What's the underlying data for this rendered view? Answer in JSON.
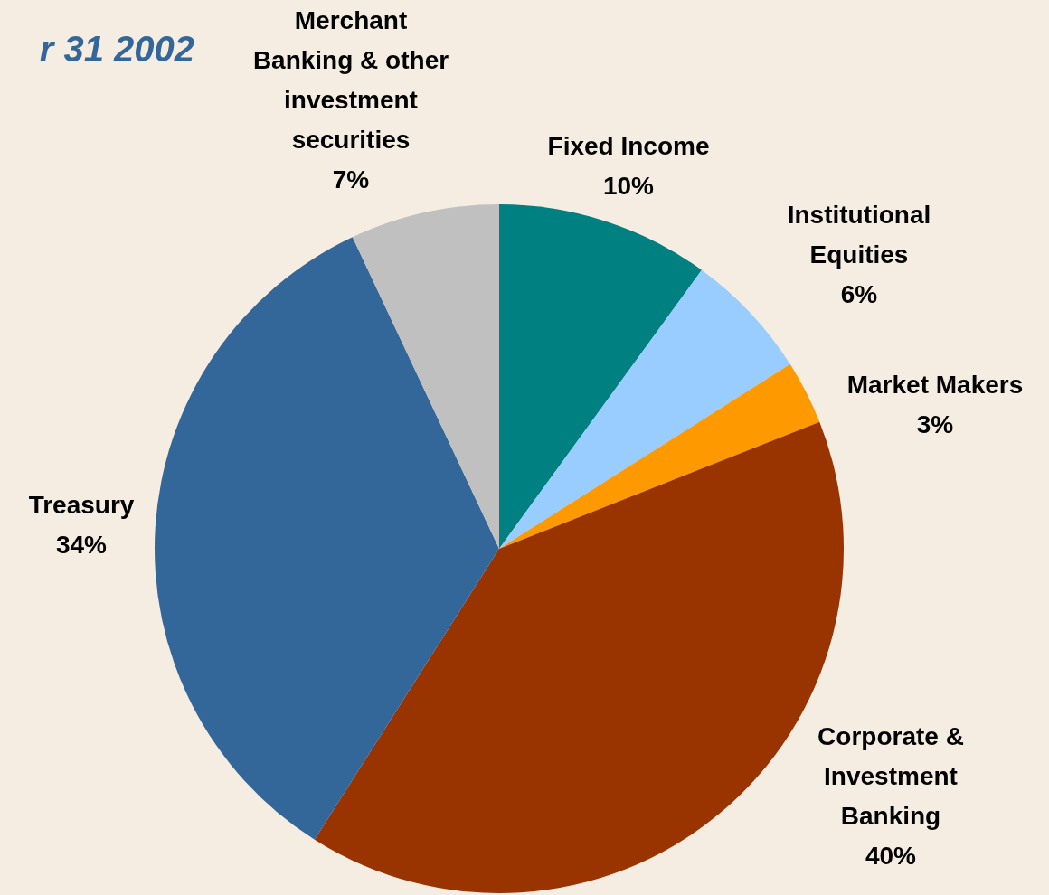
{
  "chart_data": {
    "type": "pie",
    "title": "r 31 2002",
    "categories": [
      "Fixed Income",
      "Institutional Equities",
      "Market Makers",
      "Corporate & Investment Banking",
      "Treasury",
      "Merchant Banking & other investment securities"
    ],
    "values": [
      10,
      6,
      3,
      40,
      34,
      7
    ],
    "value_labels": [
      "10%",
      "6%",
      "3%",
      "40%",
      "34%",
      "7%"
    ],
    "colors": [
      "#008080",
      "#99ccff",
      "#ff9900",
      "#993300",
      "#336699",
      "#c0c0c0"
    ]
  }
}
